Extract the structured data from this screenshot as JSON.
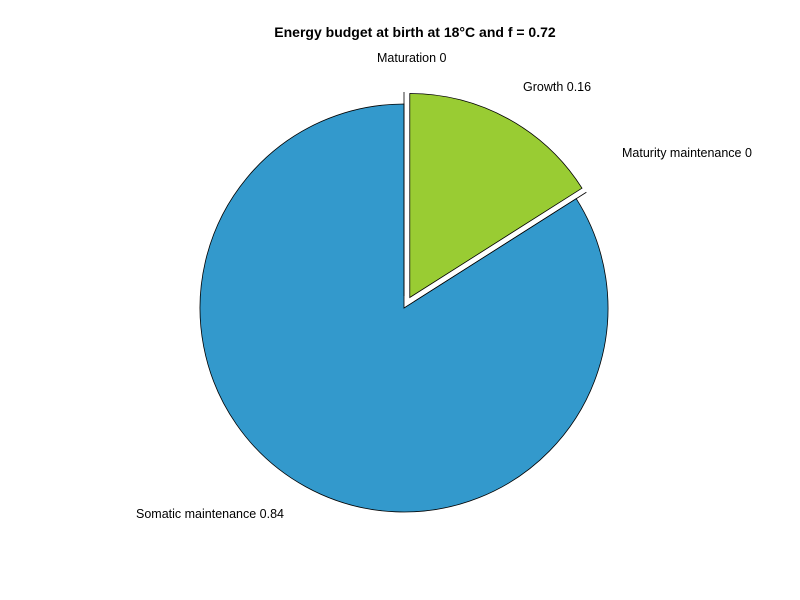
{
  "chart_data": {
    "type": "pie",
    "title": "Energy budget at birth at 18°C and f = 0.72",
    "slices": [
      {
        "label": "Somatic maintenance 0.84",
        "value": 0.84,
        "color": "#3399cc",
        "exploded": false
      },
      {
        "label": "Maturity maintenance 0",
        "value": 0,
        "color": "#ffffff",
        "exploded": true
      },
      {
        "label": "Growth 0.16",
        "value": 0.16,
        "color": "#99cc33",
        "exploded": true
      },
      {
        "label": "Maturation 0",
        "value": 0,
        "color": "#ffffff",
        "exploded": true
      }
    ],
    "legend": "none"
  }
}
